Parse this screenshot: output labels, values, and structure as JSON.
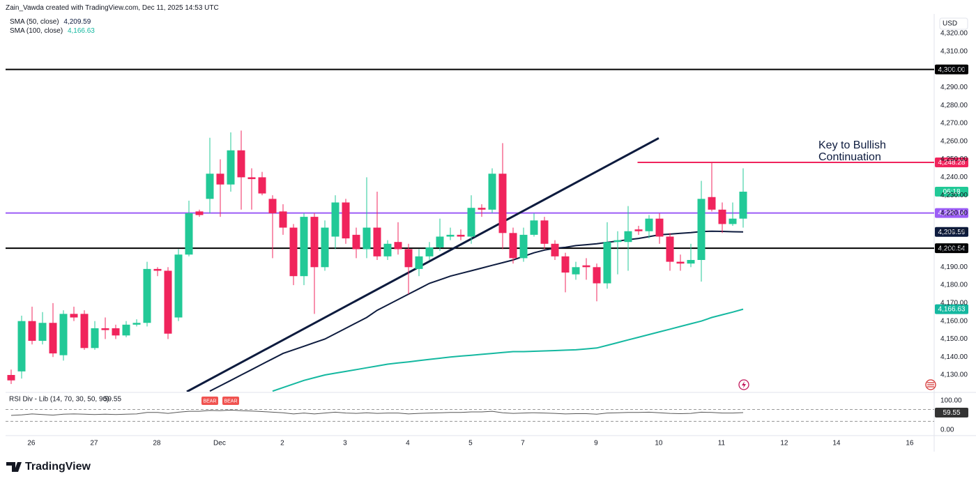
{
  "chart_data": {
    "type": "candlestick",
    "credit": "Zain_Vawda created with TradingView.com, Dec 11, 2025 14:53 UTC",
    "currency": "USD",
    "brand": "TradingView",
    "up_color": "#22c997",
    "down_color": "#f0245c",
    "ylim": [
      4120.7,
      4330.9
    ],
    "xlim": [
      -0.533,
      88.267
    ],
    "yticks": [
      {
        "value": 4130,
        "label": "4,130.00"
      },
      {
        "value": 4140,
        "label": "4,140.00"
      },
      {
        "value": 4150,
        "label": "4,150.00"
      },
      {
        "value": 4160,
        "label": "4,160.00"
      },
      {
        "value": 4170,
        "label": "4,170.00"
      },
      {
        "value": 4180,
        "label": "4,180.00"
      },
      {
        "value": 4190,
        "label": "4,190.00"
      },
      {
        "value": 4200,
        "label": "4,200.00"
      },
      {
        "value": 4210,
        "label": "4,210.00"
      },
      {
        "value": 4220,
        "label": "4,220.00"
      },
      {
        "value": 4230,
        "label": "4,230.00"
      },
      {
        "value": 4240,
        "label": "4,240.00"
      },
      {
        "value": 4250,
        "label": "4,250.00"
      },
      {
        "value": 4260,
        "label": "4,260.00"
      },
      {
        "value": 4270,
        "label": "4,270.00"
      },
      {
        "value": 4280,
        "label": "4,280.00"
      },
      {
        "value": 4290,
        "label": "4,290.00"
      },
      {
        "value": 4300,
        "label": "4,300.00"
      },
      {
        "value": 4310,
        "label": "4,310.00"
      },
      {
        "value": 4320,
        "label": "4,320.00"
      }
    ],
    "xticks": [
      {
        "value": 1.93,
        "label": "26"
      },
      {
        "value": 7.93,
        "label": "27"
      },
      {
        "value": 13.93,
        "label": "28"
      },
      {
        "value": 19.93,
        "label": "Dec"
      },
      {
        "value": 25.93,
        "label": "2"
      },
      {
        "value": 31.93,
        "label": "3"
      },
      {
        "value": 37.93,
        "label": "4"
      },
      {
        "value": 43.93,
        "label": "5"
      },
      {
        "value": 48.93,
        "label": "7"
      },
      {
        "value": 55.93,
        "label": "9"
      },
      {
        "value": 61.93,
        "label": "10"
      },
      {
        "value": 67.93,
        "label": "11"
      },
      {
        "value": 73.93,
        "label": "12"
      },
      {
        "value": 78.93,
        "label": "14"
      },
      {
        "value": 85.93,
        "label": "16"
      }
    ],
    "candles": [
      {
        "o": 4130,
        "h": 4133,
        "l": 4125,
        "c": 4127
      },
      {
        "o": 4132,
        "h": 4163,
        "l": 4128,
        "c": 4160
      },
      {
        "o": 4160,
        "h": 4168,
        "l": 4147,
        "c": 4149
      },
      {
        "o": 4149,
        "h": 4165,
        "l": 4147,
        "c": 4159
      },
      {
        "o": 4159,
        "h": 4170,
        "l": 4140,
        "c": 4142
      },
      {
        "o": 4141,
        "h": 4166,
        "l": 4138,
        "c": 4164
      },
      {
        "o": 4164,
        "h": 4168,
        "l": 4160,
        "c": 4162
      },
      {
        "o": 4164,
        "h": 4166,
        "l": 4144,
        "c": 4145
      },
      {
        "o": 4145,
        "h": 4160,
        "l": 4144,
        "c": 4156
      },
      {
        "o": 4156,
        "h": 4162,
        "l": 4150,
        "c": 4155
      },
      {
        "o": 4156,
        "h": 4158,
        "l": 4150,
        "c": 4152
      },
      {
        "o": 4152,
        "h": 4160,
        "l": 4151,
        "c": 4158
      },
      {
        "o": 4158,
        "h": 4161,
        "l": 4157,
        "c": 4159
      },
      {
        "o": 4159,
        "h": 4193,
        "l": 4157,
        "c": 4189
      },
      {
        "o": 4189,
        "h": 4190,
        "l": 4185,
        "c": 4188
      },
      {
        "o": 4188,
        "h": 4190,
        "l": 4150,
        "c": 4153
      },
      {
        "o": 4162,
        "h": 4200,
        "l": 4160,
        "c": 4197
      },
      {
        "o": 4197,
        "h": 4227,
        "l": 4196,
        "c": 4220
      },
      {
        "o": 4221,
        "h": 4222,
        "l": 4218,
        "c": 4219
      },
      {
        "o": 4228,
        "h": 4262,
        "l": 4220,
        "c": 4242
      },
      {
        "o": 4242,
        "h": 4250,
        "l": 4218,
        "c": 4236
      },
      {
        "o": 4236,
        "h": 4265,
        "l": 4232,
        "c": 4255
      },
      {
        "o": 4255,
        "h": 4266,
        "l": 4222,
        "c": 4240
      },
      {
        "o": 4240,
        "h": 4245,
        "l": 4222,
        "c": 4239
      },
      {
        "o": 4240,
        "h": 4243,
        "l": 4230,
        "c": 4231
      },
      {
        "o": 4228,
        "h": 4230,
        "l": 4195,
        "c": 4220
      },
      {
        "o": 4221,
        "h": 4225,
        "l": 4208,
        "c": 4212
      },
      {
        "o": 4212,
        "h": 4214,
        "l": 4180,
        "c": 4185
      },
      {
        "o": 4185,
        "h": 4220,
        "l": 4180,
        "c": 4218
      },
      {
        "o": 4218,
        "h": 4220,
        "l": 4164,
        "c": 4190
      },
      {
        "o": 4190,
        "h": 4216,
        "l": 4188,
        "c": 4212
      },
      {
        "o": 4207,
        "h": 4230,
        "l": 4200,
        "c": 4226
      },
      {
        "o": 4226,
        "h": 4228,
        "l": 4203,
        "c": 4206
      },
      {
        "o": 4208,
        "h": 4212,
        "l": 4195,
        "c": 4200
      },
      {
        "o": 4200,
        "h": 4240,
        "l": 4195,
        "c": 4212
      },
      {
        "o": 4212,
        "h": 4232,
        "l": 4194,
        "c": 4196
      },
      {
        "o": 4196,
        "h": 4205,
        "l": 4194,
        "c": 4203
      },
      {
        "o": 4204,
        "h": 4215,
        "l": 4197,
        "c": 4200
      },
      {
        "o": 4200,
        "h": 4203,
        "l": 4175,
        "c": 4190
      },
      {
        "o": 4189,
        "h": 4200,
        "l": 4185,
        "c": 4196
      },
      {
        "o": 4196,
        "h": 4204,
        "l": 4194,
        "c": 4201
      },
      {
        "o": 4201,
        "h": 4217,
        "l": 4199,
        "c": 4207
      },
      {
        "o": 4207,
        "h": 4212,
        "l": 4205,
        "c": 4208
      },
      {
        "o": 4208,
        "h": 4211,
        "l": 4205,
        "c": 4207
      },
      {
        "o": 4207,
        "h": 4230,
        "l": 4203,
        "c": 4223
      },
      {
        "o": 4223,
        "h": 4225,
        "l": 4218,
        "c": 4222
      },
      {
        "o": 4222,
        "h": 4245,
        "l": 4220,
        "c": 4242
      },
      {
        "o": 4242,
        "h": 4259,
        "l": 4200,
        "c": 4209
      },
      {
        "o": 4209,
        "h": 4212,
        "l": 4192,
        "c": 4195
      },
      {
        "o": 4195,
        "h": 4212,
        "l": 4193,
        "c": 4208
      },
      {
        "o": 4208,
        "h": 4220,
        "l": 4207,
        "c": 4216
      },
      {
        "o": 4216,
        "h": 4218,
        "l": 4200,
        "c": 4203
      },
      {
        "o": 4203,
        "h": 4205,
        "l": 4194,
        "c": 4196
      },
      {
        "o": 4196,
        "h": 4198,
        "l": 4176,
        "c": 4187
      },
      {
        "o": 4186,
        "h": 4193,
        "l": 4183,
        "c": 4190
      },
      {
        "o": 4191,
        "h": 4195,
        "l": 4183,
        "c": 4190
      },
      {
        "o": 4190,
        "h": 4192,
        "l": 4171,
        "c": 4181
      },
      {
        "o": 4181,
        "h": 4215,
        "l": 4178,
        "c": 4204
      },
      {
        "o": 4204,
        "h": 4210,
        "l": 4186,
        "c": 4205
      },
      {
        "o": 4204,
        "h": 4224,
        "l": 4188,
        "c": 4210
      },
      {
        "o": 4211,
        "h": 4213,
        "l": 4208,
        "c": 4210
      },
      {
        "o": 4210,
        "h": 4219,
        "l": 4206,
        "c": 4217
      },
      {
        "o": 4217,
        "h": 4220,
        "l": 4203,
        "c": 4207
      },
      {
        "o": 4207,
        "h": 4209,
        "l": 4188,
        "c": 4193
      },
      {
        "o": 4193,
        "h": 4197,
        "l": 4188,
        "c": 4192
      },
      {
        "o": 4192,
        "h": 4203,
        "l": 4190,
        "c": 4194
      },
      {
        "o": 4194,
        "h": 4238,
        "l": 4182,
        "c": 4228
      },
      {
        "o": 4229,
        "h": 4248,
        "l": 4221,
        "c": 4222
      },
      {
        "o": 4222,
        "h": 4226,
        "l": 4209,
        "c": 4214
      },
      {
        "o": 4214,
        "h": 4226,
        "l": 4213,
        "c": 4217
      },
      {
        "o": 4217,
        "h": 4245,
        "l": 4212,
        "c": 4232
      }
    ],
    "countdown": "06:18",
    "series": [
      {
        "name": "SMA (50, close)",
        "legend_value": "4,209.59",
        "color": "#0d1b3e",
        "values": [
          null,
          null,
          null,
          null,
          null,
          null,
          null,
          null,
          null,
          null,
          null,
          null,
          null,
          null,
          null,
          null,
          null,
          null,
          null,
          4121,
          4124,
          4127,
          4130,
          4133,
          4136,
          4139,
          4142,
          4144,
          4146,
          4148,
          4150,
          4153,
          4156,
          4159,
          4162,
          4166,
          4169,
          4172,
          4175,
          4178,
          4181,
          4183,
          4185,
          4186.5,
          4188,
          4189.5,
          4191,
          4192.5,
          4194,
          4196,
          4198,
          4199.5,
          4200.5,
          4201,
          4202,
          4202.5,
          4203,
          4203.8,
          4204.5,
          4205.3,
          4206,
          4207,
          4208,
          4208.4,
          4208.8,
          4209.2,
          4209.8,
          4210,
          4209.9,
          4209.7,
          4209.59
        ]
      },
      {
        "name": "SMA (100, close)",
        "legend_value": "4,166.63",
        "color": "#14b8a0",
        "values": [
          null,
          null,
          null,
          null,
          null,
          null,
          null,
          null,
          null,
          null,
          null,
          null,
          null,
          null,
          null,
          null,
          null,
          null,
          null,
          null,
          null,
          null,
          null,
          null,
          null,
          4121,
          4123,
          4125,
          4127,
          4128.5,
          4130,
          4131,
          4132,
          4133,
          4134,
          4135,
          4136,
          4136.7,
          4137.3,
          4138,
          4138.7,
          4139.3,
          4140,
          4140.5,
          4141,
          4141.5,
          4142,
          4142.5,
          4143,
          4143,
          4143.2,
          4143.4,
          4143.6,
          4143.8,
          4144,
          4144.5,
          4145,
          4146.5,
          4148,
          4149.5,
          4151,
          4152.5,
          4154,
          4155.5,
          4157,
          4158.5,
          4160,
          4162,
          4163.5,
          4165,
          4166.63
        ]
      }
    ],
    "levels": [
      {
        "value": 4300,
        "label": "4,300.00",
        "color": "#000000"
      },
      {
        "value": 4248.28,
        "label": "4,248.28",
        "color": "#f0245c",
        "from": 59.9
      },
      {
        "value": 4220.14,
        "label": "4,220.14",
        "color": "#9b5cf6"
      },
      {
        "value": 4200.54,
        "label": "4,200.54",
        "color": "#000000"
      }
    ],
    "trendline": {
      "color": "#0d1b3e",
      "points": [
        {
          "x": 16.8,
          "y": 4120.7
        },
        {
          "x": 61.93,
          "y": 4261.8
        }
      ]
    },
    "annotation": [
      "Key to Bullish",
      "Continuation"
    ],
    "rsi": {
      "title": "RSI Div - Lib (14, 70, 30, 50, 90)",
      "last_label": "59.55",
      "ylim": [
        0,
        100
      ],
      "yticks": [
        {
          "value": 100,
          "label": "100.00"
        },
        {
          "value": 0,
          "label": "0.00"
        }
      ],
      "bands": [
        70,
        30
      ],
      "color": "#555555",
      "values": [
        50,
        52,
        55,
        53,
        51,
        54,
        55,
        54,
        53,
        54,
        53,
        54,
        55,
        60,
        60,
        57,
        61,
        64,
        64,
        67,
        66,
        68,
        66,
        65,
        63,
        61,
        59,
        55,
        58,
        55,
        58,
        61,
        58,
        57,
        59,
        57,
        58,
        58,
        55,
        57,
        58,
        59,
        60,
        60,
        62,
        62,
        64,
        59,
        57,
        58,
        59,
        58,
        57,
        55,
        56,
        56,
        54,
        58,
        59,
        60,
        60,
        61,
        59,
        57,
        56,
        57,
        61,
        60,
        58,
        58,
        59.55
      ],
      "signals": [
        {
          "x": 19,
          "label": "BEAR"
        },
        {
          "x": 21,
          "label": "BEAR"
        }
      ]
    }
  }
}
